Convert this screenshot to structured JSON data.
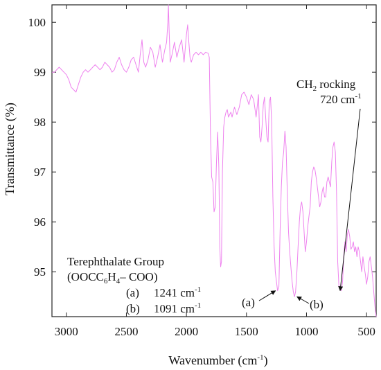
{
  "chart_data": {
    "type": "line",
    "xlabel": "Wavenumber (cm",
    "xlabel_sup": "-1",
    "xlabel_end": ")",
    "ylabel": "Transmittance (%)",
    "xlim": [
      3120,
      420
    ],
    "xaxis_reversed": true,
    "ylim": [
      94.1,
      100.35
    ],
    "xticks": [
      3000,
      2500,
      2000,
      1500,
      1000,
      500
    ],
    "xtick_labels": [
      "3000",
      "2500",
      "2000",
      "1500",
      "1000",
      "500"
    ],
    "yticks": [
      95,
      96,
      97,
      98,
      99,
      100
    ],
    "ytick_labels": [
      "95",
      "96",
      "97",
      "98",
      "99",
      "100"
    ],
    "line_color": "#ee82ee",
    "series": [
      {
        "x": [
          3120,
          3100,
          3080,
          3060,
          3040,
          3020,
          3000,
          2980,
          2960,
          2940,
          2920,
          2900,
          2880,
          2860,
          2840,
          2820,
          2800,
          2780,
          2760,
          2740,
          2720,
          2700,
          2680,
          2660,
          2640,
          2620,
          2600,
          2580,
          2560,
          2540,
          2520,
          2500,
          2480,
          2460,
          2440,
          2420,
          2400,
          2385,
          2370,
          2355,
          2340,
          2320,
          2300,
          2280,
          2260,
          2240,
          2220,
          2200,
          2180,
          2165,
          2155,
          2150,
          2145,
          2135,
          2120,
          2100,
          2080,
          2060,
          2040,
          2020,
          2000,
          1990,
          1980,
          1970,
          1960,
          1940,
          1920,
          1900,
          1880,
          1860,
          1840,
          1820,
          1810,
          1800,
          1790,
          1780,
          1770,
          1760,
          1750,
          1740,
          1730,
          1722,
          1715,
          1708,
          1700,
          1690,
          1680,
          1670,
          1660,
          1650,
          1640,
          1630,
          1620,
          1600,
          1580,
          1560,
          1540,
          1520,
          1500,
          1480,
          1460,
          1440,
          1420,
          1400,
          1390,
          1380,
          1370,
          1360,
          1350,
          1340,
          1330,
          1320,
          1310,
          1300,
          1290,
          1280,
          1270,
          1260,
          1250,
          1241,
          1230,
          1220,
          1210,
          1200,
          1190,
          1180,
          1170,
          1160,
          1150,
          1140,
          1130,
          1120,
          1110,
          1100,
          1091,
          1080,
          1070,
          1060,
          1050,
          1040,
          1030,
          1020,
          1010,
          1000,
          990,
          980,
          970,
          960,
          950,
          940,
          930,
          920,
          910,
          900,
          890,
          880,
          870,
          860,
          850,
          840,
          830,
          820,
          810,
          800,
          790,
          780,
          770,
          760,
          750,
          740,
          730,
          720,
          710,
          700,
          690,
          680,
          670,
          660,
          650,
          640,
          630,
          620,
          610,
          600,
          590,
          580,
          570,
          560,
          550,
          540,
          530,
          520,
          510,
          500,
          490,
          480,
          470,
          460,
          450,
          440,
          430,
          420
        ],
        "y": [
          99.0,
          99.0,
          99.05,
          99.1,
          99.05,
          99.0,
          98.95,
          98.85,
          98.7,
          98.65,
          98.6,
          98.75,
          98.9,
          99.0,
          99.05,
          99.0,
          99.05,
          99.1,
          99.15,
          99.1,
          99.05,
          99.1,
          99.2,
          99.15,
          99.1,
          99.0,
          99.05,
          99.2,
          99.3,
          99.15,
          99.05,
          99.0,
          99.1,
          99.25,
          99.3,
          99.15,
          99.0,
          99.35,
          99.65,
          99.2,
          99.1,
          99.25,
          99.5,
          99.4,
          99.1,
          99.3,
          99.55,
          99.2,
          99.45,
          99.6,
          100.0,
          100.35,
          99.9,
          99.2,
          99.35,
          99.6,
          99.3,
          99.5,
          99.65,
          99.2,
          99.75,
          99.95,
          99.6,
          99.3,
          99.2,
          99.35,
          99.4,
          99.35,
          99.4,
          99.35,
          99.4,
          99.38,
          99.3,
          97.8,
          96.9,
          96.8,
          96.2,
          96.3,
          97.2,
          97.8,
          97.1,
          95.5,
          95.1,
          95.2,
          97.0,
          97.9,
          98.1,
          98.2,
          98.25,
          98.1,
          98.15,
          98.2,
          98.1,
          98.3,
          98.15,
          98.3,
          98.55,
          98.6,
          98.5,
          98.35,
          98.55,
          98.45,
          98.1,
          98.55,
          97.7,
          97.6,
          97.9,
          98.35,
          98.5,
          98.1,
          97.7,
          97.6,
          98.4,
          98.5,
          98.0,
          96.5,
          95.5,
          95.0,
          94.8,
          94.62,
          94.7,
          95.8,
          96.7,
          97.2,
          97.4,
          97.82,
          97.5,
          96.6,
          95.8,
          95.4,
          95.1,
          94.8,
          94.6,
          94.5,
          94.6,
          95.0,
          95.5,
          96.0,
          96.3,
          96.4,
          96.2,
          95.8,
          95.4,
          95.6,
          95.9,
          96.1,
          96.3,
          96.8,
          97.0,
          97.1,
          97.05,
          96.9,
          96.7,
          96.5,
          96.3,
          96.4,
          96.6,
          96.7,
          96.5,
          96.5,
          96.8,
          96.9,
          96.8,
          96.7,
          97.2,
          97.5,
          97.6,
          97.4,
          96.6,
          95.2,
          94.7,
          94.65,
          94.62,
          94.8,
          95.3,
          95.6,
          95.4,
          95.75,
          95.85,
          95.7,
          95.45,
          95.5,
          95.6,
          95.4,
          95.5,
          95.3,
          95.5,
          95.4,
          95.2,
          95.0,
          95.3,
          95.1,
          94.95,
          94.75,
          94.9,
          95.2,
          95.3,
          95.1,
          94.9,
          94.6,
          94.3,
          94.1
        ]
      }
    ],
    "annotations": {
      "group_title": "Terephthalate Group",
      "group_formula_a": "(OOCC",
      "group_formula_sub1": "6",
      "group_formula_b": "H",
      "group_formula_sub2": "4",
      "group_formula_c": "– COO)",
      "peak_a_label": "(a)",
      "peak_a_value": "1241 cm",
      "peak_a_sup": "-1",
      "peak_b_label": "(b)",
      "peak_b_value": "1091 cm",
      "peak_b_sup": "-1",
      "arrow_a_label": "(a)",
      "arrow_b_label": "(b)",
      "ch2_line1_a": "CH",
      "ch2_line1_sub": "2",
      "ch2_line1_b": " rocking",
      "ch2_line2": "720 cm",
      "ch2_line2_sup": "-1",
      "arrow_a_target": [
        1241,
        94.62
      ],
      "arrow_b_target": [
        1091,
        94.5
      ],
      "arrow_ch2_target": [
        720,
        94.62
      ]
    }
  }
}
